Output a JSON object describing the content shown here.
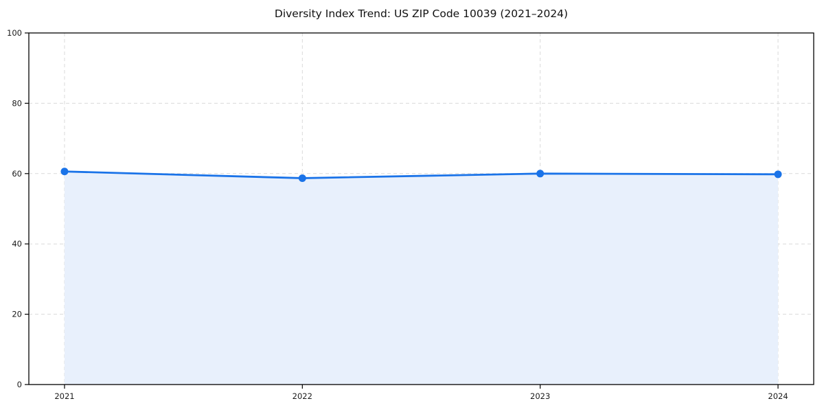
{
  "chart_data": {
    "type": "area",
    "title": "Diversity Index Trend: US ZIP Code 10039 (2021–2024)",
    "categories": [
      "2021",
      "2022",
      "2023",
      "2024"
    ],
    "series": [
      {
        "name": "Diversity Index",
        "values": [
          60.6,
          58.7,
          60.0,
          59.8
        ]
      }
    ],
    "xlabel": "",
    "ylabel": "",
    "ylim": [
      0,
      100
    ],
    "yticks": [
      0,
      20,
      40,
      60,
      80,
      100
    ],
    "grid": true,
    "grid_style": "dashed",
    "legend_position": "none",
    "colors": {
      "line": "#1a73e8",
      "fill": "#e8f0fc",
      "grid": "#d9d9d9",
      "axis": "#000000",
      "tick_labels": "#1a1a1a",
      "title": "#111111",
      "background": "#ffffff"
    }
  }
}
